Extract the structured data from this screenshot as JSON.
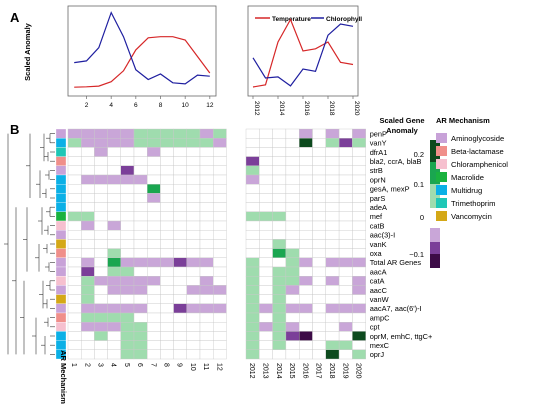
{
  "panel_labels": {
    "a": "A",
    "b": "B"
  },
  "colors": {
    "temperature": "#d62728",
    "chlorophyll": "#1f1fa0",
    "scale_pos_strong": "#0d4a1e",
    "scale_pos_mid": "#1aa650",
    "scale_pos_light": "#9fdcae",
    "scale_neg_light": "#c9a6d8",
    "scale_neg_mid": "#7b3f99",
    "scale_neg_strong": "#3d0b47",
    "empty_cell": "#ffffff",
    "cell_border": "#c8c8c8"
  },
  "chart_data": [
    {
      "type": "line",
      "panel": "A-left",
      "ylabel": "Scaled Anomaly",
      "x": [
        1,
        2,
        3,
        4,
        5,
        6,
        7,
        8,
        9,
        10,
        11,
        12
      ],
      "xticks": [
        "2",
        "4",
        "6",
        "8",
        "10",
        "12"
      ],
      "xlim": [
        0.5,
        12.5
      ],
      "ylim": [
        -1.5,
        2.6
      ],
      "series": [
        {
          "key": "temperature",
          "values": [
            -1.1,
            -1.08,
            -1.05,
            -0.85,
            -0.35,
            0.6,
            1.15,
            1.2,
            1.2,
            1.05,
            0.3,
            -0.45
          ]
        },
        {
          "key": "chlorophyll",
          "values": [
            0.02,
            0.1,
            0.7,
            2.3,
            1.2,
            -0.3,
            -0.75,
            -0.5,
            -0.9,
            -0.95,
            -0.55,
            -0.6
          ]
        }
      ]
    },
    {
      "type": "line",
      "panel": "A-right",
      "legend": {
        "placement": "top",
        "entries": [
          "Temperature",
          "Chlorophyll"
        ]
      },
      "x": [
        2012,
        2013,
        2014,
        2015,
        2016,
        2017,
        2018,
        2019,
        2020
      ],
      "xticks": [
        "2012",
        "2014",
        "2016",
        "2018",
        "2020"
      ],
      "xlim": [
        2011.6,
        2020.4
      ],
      "ylim": [
        -1.8,
        2.2
      ],
      "series": [
        {
          "name": "Temperature",
          "key": "temperature",
          "values": [
            -1.4,
            -1.3,
            0.6,
            1.6,
            0.2,
            0.3,
            0.6,
            -0.3,
            -0.4
          ]
        },
        {
          "name": "Chlorophyll",
          "key": "chlorophyll",
          "values": [
            -0.1,
            -1.0,
            -0.95,
            -1.35,
            -0.6,
            -0.7,
            0.9,
            1.4,
            1.3
          ]
        }
      ]
    },
    {
      "type": "heatmap",
      "panel": "B",
      "xlabel_left": "AR Mechanism",
      "months": [
        "1",
        "2",
        "3",
        "4",
        "5",
        "6",
        "7",
        "8",
        "9",
        "10",
        "11",
        "12"
      ],
      "years": [
        "2012",
        "2013",
        "2014",
        "2015",
        "2016",
        "2017",
        "2018",
        "2019",
        "2020"
      ],
      "genes": [
        "penP",
        "vanY",
        "dfrA1",
        "bla2, ccrA, blaB",
        "strB",
        "oprN",
        "gesA, mexP",
        "parS",
        "adeA",
        "mef",
        "catB",
        "aac(3)-I",
        "vanK",
        "oxa",
        "Total AR Genes",
        "aacA",
        "catA",
        "aacC",
        "vanW",
        "aacA7, aac(6')-I",
        "ampC",
        "cpt",
        "oprM, emhC, ttgC+",
        "mexC",
        "oprJ"
      ],
      "gene_mechanism": [
        "Aminoglycoside",
        "Multidrug",
        "Trimethoprim",
        "Beta-lactamase",
        "Aminoglycoside",
        "Multidrug",
        "Multidrug",
        "Multidrug",
        "Multidrug",
        "Macrolide",
        "Chloramphenicol",
        "Aminoglycoside",
        "Vancomycin",
        "Beta-lactamase",
        "Aminoglycoside",
        "Aminoglycoside",
        "Chloramphenicol",
        "Aminoglycoside",
        "Vancomycin",
        "Aminoglycoside",
        "Beta-lactamase",
        "Chloramphenicol",
        "Multidrug",
        "Multidrug",
        "Multidrug"
      ],
      "month_values": [
        [
          -0.05,
          -0.05,
          -0.05,
          -0.05,
          -0.05,
          0.05,
          0.05,
          0.05,
          0.05,
          0.05,
          -0.05,
          0.05
        ],
        [
          0.05,
          -0.05,
          -0.05,
          -0.05,
          -0.05,
          0.05,
          0.05,
          0.05,
          0.05,
          0.05,
          0.05,
          -0.05
        ],
        [
          0,
          0,
          -0.05,
          0,
          0,
          0,
          -0.05,
          0,
          0,
          0,
          0,
          0
        ],
        [
          0,
          0,
          0,
          0,
          0,
          0,
          0,
          0,
          0,
          0,
          0,
          0
        ],
        [
          0,
          0,
          0,
          0,
          -0.12,
          0,
          0,
          0,
          0,
          0,
          0,
          0
        ],
        [
          0,
          -0.05,
          -0.05,
          -0.05,
          -0.05,
          -0.05,
          0,
          0,
          0,
          0,
          0,
          0
        ],
        [
          0,
          0,
          0,
          0,
          0,
          0,
          0.12,
          0,
          0,
          0,
          0,
          0
        ],
        [
          0,
          0,
          0,
          0,
          0,
          0,
          -0.05,
          0,
          0,
          0,
          0,
          0
        ],
        [
          0,
          0,
          0,
          0,
          0,
          0,
          0,
          0,
          0,
          0,
          0,
          0
        ],
        [
          0.05,
          0.05,
          0,
          0,
          0,
          0,
          0,
          0,
          0,
          0,
          0,
          0
        ],
        [
          0,
          -0.05,
          0,
          -0.05,
          0,
          0,
          0,
          0,
          0,
          0,
          0,
          0
        ],
        [
          0,
          0,
          0,
          0,
          0,
          0,
          0,
          0,
          0,
          0,
          0,
          0
        ],
        [
          0,
          0,
          0,
          0,
          0,
          0,
          0,
          0,
          0,
          0,
          0,
          0
        ],
        [
          0,
          0,
          0,
          0.05,
          0,
          0,
          0,
          0,
          0,
          0,
          0,
          0
        ],
        [
          0,
          -0.05,
          0,
          0.18,
          -0.05,
          -0.05,
          -0.05,
          -0.05,
          -0.12,
          -0.05,
          -0.05,
          0
        ],
        [
          0,
          -0.12,
          0,
          0.05,
          0.05,
          0,
          0,
          0,
          0,
          0,
          0,
          0
        ],
        [
          0,
          0.05,
          -0.05,
          -0.05,
          -0.05,
          -0.05,
          -0.05,
          0,
          0,
          0,
          -0.05,
          0
        ],
        [
          0,
          0.05,
          0,
          -0.05,
          -0.05,
          -0.05,
          0,
          0,
          0,
          -0.05,
          -0.05,
          -0.05
        ],
        [
          0,
          0.05,
          0,
          0,
          0,
          0,
          0,
          0,
          0,
          0,
          0,
          0
        ],
        [
          0,
          -0.05,
          -0.05,
          -0.05,
          -0.05,
          -0.05,
          0,
          0,
          -0.12,
          -0.05,
          -0.05,
          -0.05
        ],
        [
          0,
          0.05,
          0.05,
          0.05,
          0.05,
          0,
          0,
          0,
          0,
          0,
          0,
          0
        ],
        [
          0,
          -0.05,
          -0.05,
          -0.05,
          0.05,
          0.05,
          0,
          0,
          0,
          0,
          0,
          0
        ],
        [
          0,
          0,
          0.05,
          0,
          0.05,
          0.05,
          0,
          0,
          0,
          0,
          0,
          0
        ],
        [
          0,
          0,
          0,
          0,
          0.05,
          0.05,
          0,
          0,
          0,
          0,
          0,
          0
        ],
        [
          0,
          0,
          0,
          0,
          0.05,
          0.05,
          0,
          0,
          0,
          0,
          0,
          0
        ]
      ],
      "year_values": [
        [
          0,
          0,
          0,
          0,
          -0.05,
          0,
          -0.05,
          0,
          -0.05
        ],
        [
          0,
          0,
          0,
          0,
          0.25,
          0,
          0.05,
          -0.12,
          0.05
        ],
        [
          0,
          0,
          0,
          0,
          0,
          0,
          0,
          0,
          0
        ],
        [
          -0.12,
          0,
          0,
          0,
          0,
          0,
          0,
          0,
          0
        ],
        [
          0.05,
          0,
          0,
          0,
          0,
          0,
          0,
          0,
          0
        ],
        [
          -0.05,
          0,
          0,
          0,
          0,
          0,
          0,
          0,
          0
        ],
        [
          0,
          0,
          0,
          0,
          0,
          0,
          0,
          0,
          0
        ],
        [
          0,
          0,
          0,
          0,
          0,
          0,
          0,
          0,
          0
        ],
        [
          0,
          0,
          0,
          0,
          0,
          0,
          0,
          0,
          0
        ],
        [
          0.05,
          0.05,
          0.05,
          0,
          0,
          0,
          0,
          0,
          0
        ],
        [
          0,
          0,
          0,
          0,
          0,
          0,
          0,
          0,
          0
        ],
        [
          0,
          0,
          0,
          0,
          0,
          0,
          0,
          0,
          0
        ],
        [
          0,
          0,
          0.05,
          0,
          0,
          0,
          0,
          0,
          0
        ],
        [
          0,
          0,
          0.18,
          0.05,
          0,
          0,
          0,
          0,
          0
        ],
        [
          0.05,
          0,
          0,
          0.05,
          -0.05,
          0,
          -0.05,
          -0.05,
          -0.05
        ],
        [
          0.05,
          0,
          0.05,
          0.05,
          0,
          0,
          0,
          0,
          0
        ],
        [
          0.05,
          0,
          0.05,
          0.05,
          -0.05,
          0,
          -0.05,
          0,
          -0.05
        ],
        [
          0.05,
          0,
          0.05,
          -0.05,
          0,
          0,
          0,
          0,
          -0.05
        ],
        [
          0.05,
          0,
          0.05,
          0,
          0,
          0,
          0,
          0,
          0
        ],
        [
          0.05,
          -0.05,
          0.05,
          -0.05,
          -0.05,
          0,
          -0.05,
          -0.05,
          -0.05
        ],
        [
          0.05,
          0,
          0.05,
          0,
          0,
          0,
          0,
          0,
          0
        ],
        [
          0.05,
          -0.05,
          0.05,
          -0.05,
          0,
          0,
          0,
          -0.05,
          0
        ],
        [
          0.05,
          0,
          0.05,
          -0.12,
          -0.25,
          0,
          0,
          0,
          0.25
        ],
        [
          0.05,
          0,
          0.05,
          0,
          0,
          0,
          0.05,
          0.05,
          0
        ],
        [
          0.05,
          0,
          0,
          0,
          0,
          0,
          0.25,
          0,
          0.05
        ]
      ],
      "color_scale": {
        "title": "Scaled Gene Anomaly",
        "tick_labels": [
          "0.2",
          "0.1",
          "0",
          "−0.1"
        ],
        "tick_values": [
          0.2,
          0.1,
          0,
          -0.1
        ]
      }
    }
  ],
  "mechanism_legend": {
    "title": "AR Mechanism",
    "items": [
      {
        "label": "Aminoglycoside",
        "color": "#c8a2d8"
      },
      {
        "label": "Beta-lactamase",
        "color": "#f08f8a"
      },
      {
        "label": "Chloramphenicol",
        "color": "#f6c0cf"
      },
      {
        "label": "Macrolide",
        "color": "#1ab23f"
      },
      {
        "label": "Multidrug",
        "color": "#0bb0e6"
      },
      {
        "label": "Trimethoprim",
        "color": "#1fc7b6"
      },
      {
        "label": "Vancomycin",
        "color": "#d4a817"
      }
    ]
  }
}
